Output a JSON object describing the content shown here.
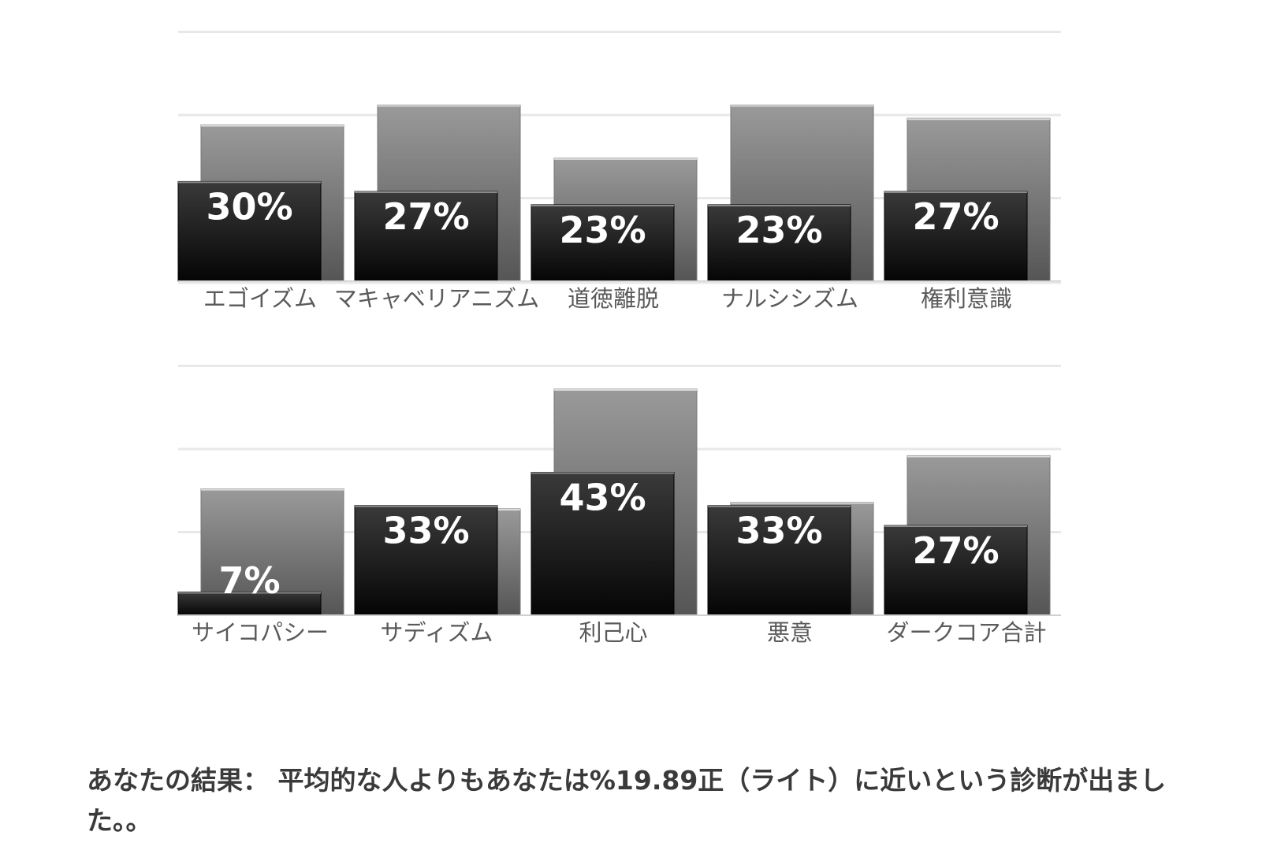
{
  "chart_data": [
    {
      "type": "bar",
      "categories": [
        "エゴイズム",
        "マキャベリアニズム",
        "道徳離脱",
        "ナルシシズム",
        "権利意識"
      ],
      "series": [
        {
          "values": [
            47,
            53,
            37,
            53,
            49
          ]
        },
        {
          "values": [
            30,
            27,
            23,
            23,
            27
          ]
        }
      ],
      "data_labels": [
        "30%",
        "27%",
        "23%",
        "23%",
        "27%"
      ],
      "ylim": [
        0,
        100
      ],
      "grid": true,
      "legend": "none",
      "colors": {
        "background_series": "#8a8a8a",
        "foreground_series": "#1a1a1a",
        "label": "#ffffff"
      }
    },
    {
      "type": "bar",
      "categories": [
        "サイコパシー",
        "サディズム",
        "利己心",
        "悪意",
        "ダークコア合計"
      ],
      "series": [
        {
          "values": [
            38,
            32,
            68,
            34,
            48
          ]
        },
        {
          "values": [
            7,
            33,
            43,
            33,
            27
          ]
        }
      ],
      "data_labels": [
        "7%",
        "33%",
        "43%",
        "33%",
        "27%"
      ],
      "ylim": [
        0,
        100
      ],
      "grid": true,
      "legend": "none",
      "colors": {
        "background_series": "#8a8a8a",
        "foreground_series": "#1a1a1a",
        "label": "#ffffff"
      }
    }
  ],
  "result": {
    "text": "あなたの結果： 平均的な人よりもあなたは%19.89正（ライト）に近いという診断が出ました。。"
  }
}
